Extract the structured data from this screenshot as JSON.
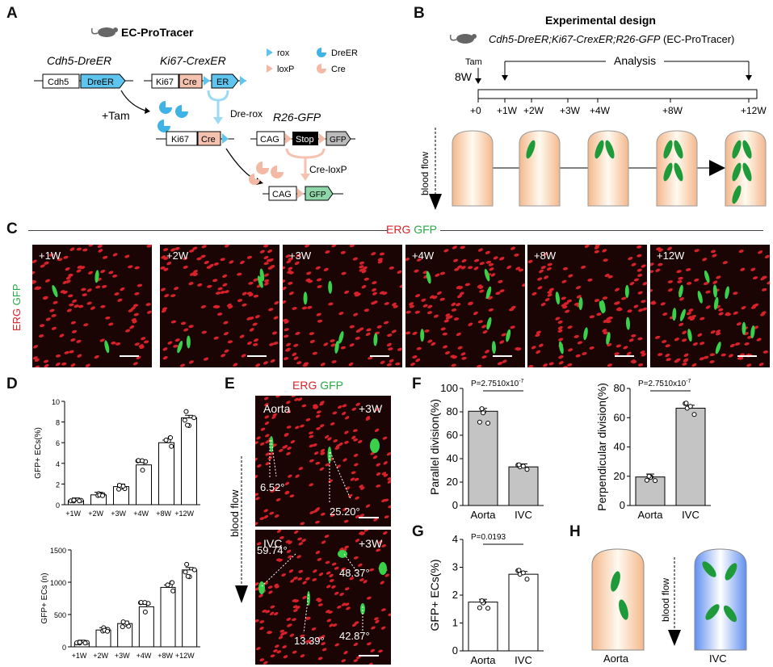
{
  "panels": {
    "A": "A",
    "B": "B",
    "C": "C",
    "D": "D",
    "E": "E",
    "F": "F",
    "G": "G",
    "H": "H"
  },
  "panelA": {
    "title": "EC-ProTracer",
    "cdh5_label": "Cdh5-DreER",
    "ki67_label": "Ki67-CrexER",
    "r26_label": "R26-GFP",
    "boxes": {
      "cdh5": "Cdh5",
      "dreer": "DreER",
      "ki67": "Ki67",
      "cre": "Cre",
      "er": "ER",
      "ki67b": "Ki67",
      "creb": "Cre",
      "cag": "CAG",
      "stop": "Stop",
      "gfp": "GFP",
      "cag2": "CAG",
      "gfp2": "GFP"
    },
    "legend": {
      "rox": "rox",
      "dreer": "DreER",
      "loxp": "loxP",
      "cre": "Cre"
    },
    "tam": "+Tam",
    "dre_rox": "Dre-rox",
    "cre_loxp": "Cre-loxP"
  },
  "panelB": {
    "title": "Experimental design",
    "subtitle_italic": "Cdh5-DreER;Ki67-CrexER;R26-GFP",
    "subtitle_rest": " (EC-ProTracer)",
    "tam": "Tam",
    "eightw": "8W",
    "analysis": "Analysis",
    "timepoints": [
      "+0",
      "+1W",
      "+2W",
      "+3W",
      "+4W",
      "+8W",
      "+12W"
    ],
    "blood_flow": "blood flow"
  },
  "panelC": {
    "erg": "ERG",
    "gfp": "GFP",
    "side_erg": "ERG",
    "side_gfp": "GFP",
    "images": [
      "+1W",
      "+2W",
      "+3W",
      "+4W",
      "+8W",
      "+12W"
    ]
  },
  "panelD": {
    "chart_top": {
      "ylabel": "GFP+ ECs(%)",
      "ylim": [
        0,
        10
      ],
      "yticks": [
        "0",
        "2",
        "4",
        "6",
        "8",
        "10"
      ],
      "categories": [
        "+1W",
        "+2W",
        "+3W",
        "+4W",
        "+8W",
        "+12W"
      ],
      "values": [
        0.4,
        0.95,
        1.75,
        3.85,
        6.0,
        8.4
      ]
    },
    "chart_bottom": {
      "ylabel": "GFP+ ECs (n)",
      "ylim": [
        0,
        1500
      ],
      "yticks": [
        "0",
        "500",
        "1000",
        "1500"
      ],
      "categories": [
        "+1W",
        "+2W",
        "+3W",
        "+4W",
        "+8W",
        "+12W"
      ],
      "values": [
        65,
        260,
        360,
        620,
        920,
        1190
      ]
    }
  },
  "panelE": {
    "erg": "ERG",
    "gfp": "GFP",
    "blood_flow": "blood flow",
    "aorta": "Aorta",
    "ivc": "IVC",
    "tp1": "+3W",
    "tp2": "+3W",
    "angles_aorta": [
      "6.52°",
      "25.20°"
    ],
    "angles_ivc": [
      "59.74°",
      "48.37°",
      "13.39°",
      "42.87°"
    ]
  },
  "chart_data": [
    {
      "type": "bar",
      "ylabel": "Parallel division(%)",
      "categories": [
        "Aorta",
        "IVC"
      ],
      "values": [
        80.5,
        33
      ],
      "ylim": [
        0,
        100
      ],
      "yticks": [
        "0",
        "20",
        "40",
        "60",
        "80",
        "100"
      ],
      "pvalue": "P=2.7510x10",
      "pexp": "-7"
    },
    {
      "type": "bar",
      "ylabel": "Perpendicular division(%)",
      "categories": [
        "Aorta",
        "IVC"
      ],
      "values": [
        19.5,
        66.5
      ],
      "ylim": [
        0,
        80
      ],
      "yticks": [
        "0",
        "20",
        "40",
        "60",
        "80"
      ],
      "pvalue": "P=2.7510x10",
      "pexp": "-7"
    },
    {
      "type": "bar",
      "ylabel": "GFP+ ECs(%)",
      "categories": [
        "Aorta",
        "IVC"
      ],
      "values": [
        1.75,
        2.75
      ],
      "ylim": [
        0,
        4
      ],
      "yticks": [
        "0",
        "1",
        "2",
        "3",
        "4"
      ],
      "pvalue": "P=0.0193"
    }
  ],
  "panelH": {
    "blood_flow": "blood flow",
    "aorta": "Aorta",
    "ivc": "IVC"
  },
  "colors": {
    "dreer": "#5ec5ee",
    "cre": "#f6c2b0",
    "er": "#5ec5ee",
    "gfp_green": "#2ea043",
    "stop": "#000000",
    "erg_red": "#d8222a"
  }
}
